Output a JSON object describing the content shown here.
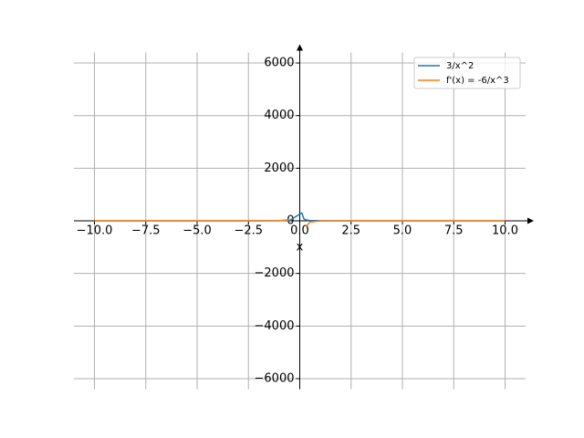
{
  "chart_data": {
    "type": "line",
    "x_label": "x",
    "x": [
      -10,
      -5,
      -2.5,
      -1,
      -0.5,
      0.1,
      0.2,
      0.3,
      0.5,
      1,
      2.5,
      5,
      10
    ],
    "series": [
      {
        "name": "3/x^2",
        "color": "#1f77b4",
        "values": [
          0.03,
          0.12,
          0.48,
          3,
          12,
          300,
          75,
          33.3,
          12,
          3,
          0.48,
          0.12,
          0.03
        ]
      },
      {
        "name": "f'(x) = -6/x^3",
        "color": "#ff7f0e",
        "values": [
          0.006,
          0.048,
          0.384,
          6,
          48,
          null,
          null,
          -222.2,
          -48,
          -6,
          -0.384,
          -0.048,
          -0.006
        ]
      }
    ],
    "xlim": [
      -11,
      11
    ],
    "ylim": [
      -6400,
      6400
    ],
    "xticks": [
      {
        "value": -10,
        "label": "−10.0"
      },
      {
        "value": -7.5,
        "label": "−7.5"
      },
      {
        "value": -5,
        "label": "−5.0"
      },
      {
        "value": -2.5,
        "label": "−2.5"
      },
      {
        "value": 0,
        "label": "0.0"
      },
      2.5,
      {
        "value": 5,
        "label": "5.0"
      },
      7.5,
      {
        "value": 10,
        "label": "10.0"
      }
    ],
    "yticks": [
      {
        "value": -6000,
        "label": "−6000"
      },
      {
        "value": -4000,
        "label": "−4000"
      },
      {
        "value": -2000,
        "label": "−2000"
      },
      0,
      2000,
      4000,
      6000
    ],
    "grid": true,
    "legend": "upper right"
  }
}
